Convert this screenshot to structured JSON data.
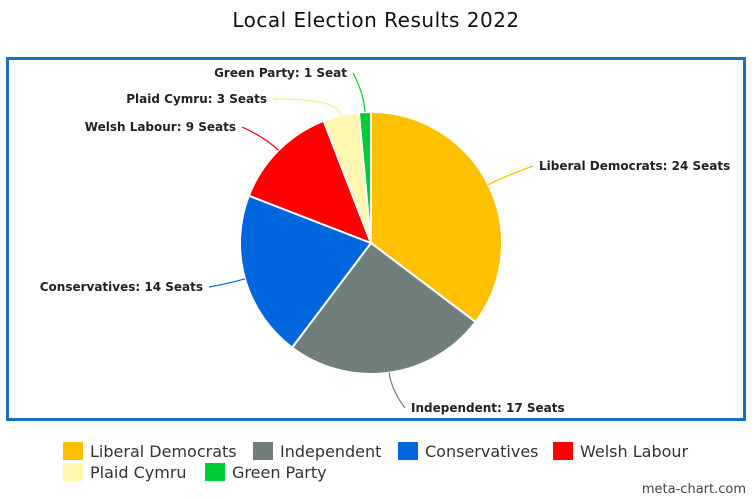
{
  "chart_data": {
    "type": "pie",
    "title": "Local Election Results 2022",
    "slices": [
      {
        "name": "Liberal Democrats",
        "value": 24,
        "label": "Liberal Democrats: 24 Seats",
        "color": "#FFC000"
      },
      {
        "name": "Independent",
        "value": 17,
        "label": "Independent: 17 Seats",
        "color": "#707E7C"
      },
      {
        "name": "Conservatives",
        "value": 14,
        "label": "Conservatives: 14 Seats",
        "color": "#0066DD"
      },
      {
        "name": "Welsh Labour",
        "value": 9,
        "label": "Welsh Labour: 9 Seats",
        "color": "#FF0000"
      },
      {
        "name": "Plaid Cymru",
        "value": 3,
        "label": "Plaid Cymru: 3 Seats",
        "color": "#FFF7B0"
      },
      {
        "name": "Green Party",
        "value": 1,
        "label": "Green Party: 1 Seat",
        "color": "#00CC33"
      }
    ],
    "legend_placement": "bottom"
  },
  "legend": [
    {
      "label": "Liberal Democrats",
      "color": "#FFC000"
    },
    {
      "label": "Independent",
      "color": "#707E7C"
    },
    {
      "label": "Conservatives",
      "color": "#0066DD"
    },
    {
      "label": "Welsh Labour",
      "color": "#FF0000"
    },
    {
      "label": "Plaid Cymru",
      "color": "#FFF7B0"
    },
    {
      "label": "Green Party",
      "color": "#00CC33"
    }
  ],
  "credit": "meta-chart.com",
  "colors": {
    "frame": "#1a6fbf"
  }
}
